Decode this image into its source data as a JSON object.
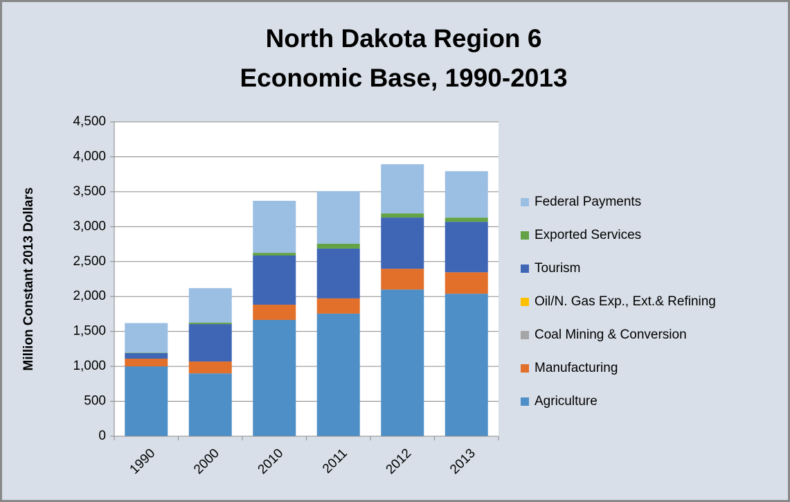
{
  "chart_data": {
    "type": "stacked_bar",
    "title": [
      "North Dakota Region 6",
      "Economic Base, 1990-2013"
    ],
    "y_label": "Million Constant 2013 Dollars",
    "categories": [
      "1990",
      "2000",
      "2010",
      "2011",
      "2012",
      "2013"
    ],
    "series": [
      {
        "name": "Agriculture",
        "color": "#4f8fc7",
        "values": [
          1000,
          900,
          1665,
          1755,
          2100,
          2040
        ]
      },
      {
        "name": "Manufacturing",
        "color": "#e2702b",
        "values": [
          110,
          170,
          218,
          218,
          297,
          307
        ]
      },
      {
        "name": "Coal Mining & Conversion",
        "color": "#a5a5a5",
        "values": [
          0,
          0,
          0,
          0,
          0,
          0
        ]
      },
      {
        "name": "Oil/N. Gas Exp., Ext.& Refining",
        "color": "#ffc000",
        "values": [
          0,
          0,
          0,
          0,
          0,
          0
        ]
      },
      {
        "name": "Tourism",
        "color": "#3f66b5",
        "values": [
          80,
          535,
          704,
          714,
          734,
          723
        ]
      },
      {
        "name": "Exported Services",
        "color": "#63a345",
        "values": [
          5,
          20,
          39,
          69,
          59,
          60
        ]
      },
      {
        "name": "Federal Payments",
        "color": "#9bbfe3",
        "values": [
          425,
          495,
          744,
          753,
          704,
          664
        ]
      }
    ],
    "ylim": [
      0,
      4500
    ],
    "yticks": [
      0,
      500,
      {
        "value": 1000,
        "label": "1,000"
      },
      {
        "value": 1500,
        "label": "1,500"
      },
      {
        "value": 2000,
        "label": "2,000"
      },
      {
        "value": 2500,
        "label": "2,500"
      },
      {
        "value": 3000,
        "label": "3,000"
      },
      {
        "value": 3500,
        "label": "3,500"
      },
      {
        "value": 4000,
        "label": "4,000"
      },
      {
        "value": 4500,
        "label": "4,500"
      }
    ],
    "grid": true,
    "legend": "right"
  }
}
